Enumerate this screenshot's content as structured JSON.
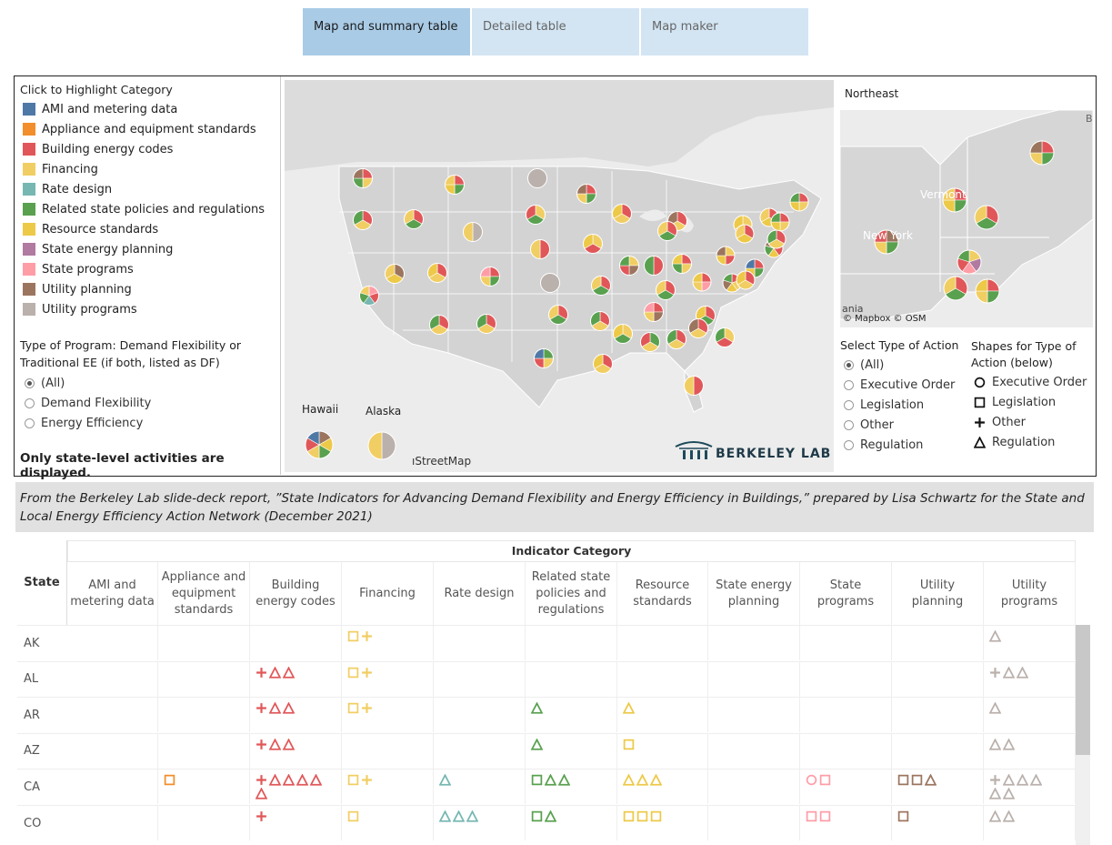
{
  "tabs": [
    {
      "label": "Map and summary table",
      "active": true
    },
    {
      "label": "Detailed table",
      "active": false
    },
    {
      "label": "Map maker",
      "active": false
    }
  ],
  "legend": {
    "title": "Click to Highlight Category",
    "items": [
      {
        "label": "AMI and metering data",
        "color": "#4e79a7"
      },
      {
        "label": "Appliance and equipment standards",
        "color": "#f28e2b"
      },
      {
        "label": "Building energy codes",
        "color": "#e15759"
      },
      {
        "label": "Financing",
        "color": "#f1ce63"
      },
      {
        "label": "Rate design",
        "color": "#76b7b2"
      },
      {
        "label": "Related state policies and regulations",
        "color": "#59a14f"
      },
      {
        "label": "Resource standards",
        "color": "#edc948"
      },
      {
        "label": "State energy planning",
        "color": "#b07aa1"
      },
      {
        "label": "State programs",
        "color": "#ff9da7"
      },
      {
        "label": "Utility planning",
        "color": "#9c755f"
      },
      {
        "label": "Utility programs",
        "color": "#bab0ac"
      }
    ],
    "program_title_1": "Type of Program: Demand Flexibility or",
    "program_title_2": "Traditional EE (if both, listed as DF)",
    "program_options": [
      "(All)",
      "Demand Flexibility",
      "Energy Efficiency"
    ],
    "note": "Only state-level activities are displayed."
  },
  "map": {
    "hawaii_label": "Hawaii",
    "alaska_label": "Alaska",
    "attribution": "ıStreetMap",
    "brand": "BERKELEY LAB"
  },
  "northeast": {
    "title": "Northeast",
    "attribution": "© Mapbox  © OSM",
    "label_vt": "Vermont",
    "label_ny": "New York",
    "label_pa": "ania",
    "label_b": "B"
  },
  "action": {
    "title": "Select Type of Action",
    "options": [
      "(All)",
      "Executive Order",
      "Legislation",
      "Other",
      "Regulation"
    ],
    "shapes_title_1": "Shapes for Type of",
    "shapes_title_2": "Action (below)",
    "shapes": [
      {
        "icon": "circle",
        "label": "Executive Order"
      },
      {
        "icon": "square",
        "label": "Legislation"
      },
      {
        "icon": "plus",
        "label": "Other"
      },
      {
        "icon": "triangle",
        "label": "Regulation"
      }
    ]
  },
  "caption": "From the Berkeley Lab slide-deck report, ”State Indicators for Advancing Demand Flexibility and Energy Efficiency in Buildings,” prepared by Lisa Schwartz for the State and Local Energy Efficiency Action Network (December 2021)",
  "table": {
    "group_header": "Indicator Category",
    "state_header": "State",
    "columns": [
      "AMI and metering data",
      "Appliance and equipment standards",
      "Building energy codes",
      "Financing",
      "Rate design",
      "Related state policies and regulations",
      "Resource standards",
      "State energy planning",
      "State programs",
      "Utility planning",
      "Utility programs"
    ],
    "rows": [
      {
        "state": "AK",
        "cells": {
          "3": "sp",
          "10": "t"
        }
      },
      {
        "state": "AL",
        "cells": {
          "2": "ptt",
          "3": "sp",
          "10": "ptt"
        }
      },
      {
        "state": "AR",
        "cells": {
          "2": "ptt",
          "3": "sp",
          "5": "t",
          "6": "t",
          "10": "t"
        }
      },
      {
        "state": "AZ",
        "cells": {
          "2": "ptt",
          "5": "t",
          "6": "s",
          "10": "tt"
        }
      },
      {
        "state": "CA",
        "cells": {
          "1": "s",
          "2": "ptttt|t",
          "3": "sp",
          "4": "t",
          "5": "stt",
          "6": "ttt",
          "8": "cs",
          "9": "sst",
          "10": "pttt|tt"
        }
      },
      {
        "state": "CO",
        "cells": {
          "2": "p",
          "3": "s",
          "4": "ttt",
          "5": "st",
          "6": "sss",
          "8": "ss",
          "9": "s",
          "10": "tt"
        }
      }
    ]
  }
}
